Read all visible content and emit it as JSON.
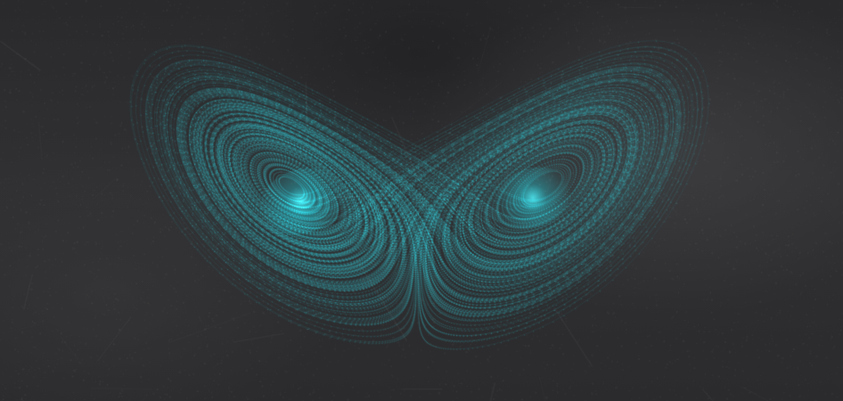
{
  "scene": {
    "subject": "lorenz-attractor-on-chalkboard",
    "colors": {
      "board": "#2c2c2e",
      "glow": "#27e0f0",
      "trajectory": "#1fb8c8"
    }
  }
}
